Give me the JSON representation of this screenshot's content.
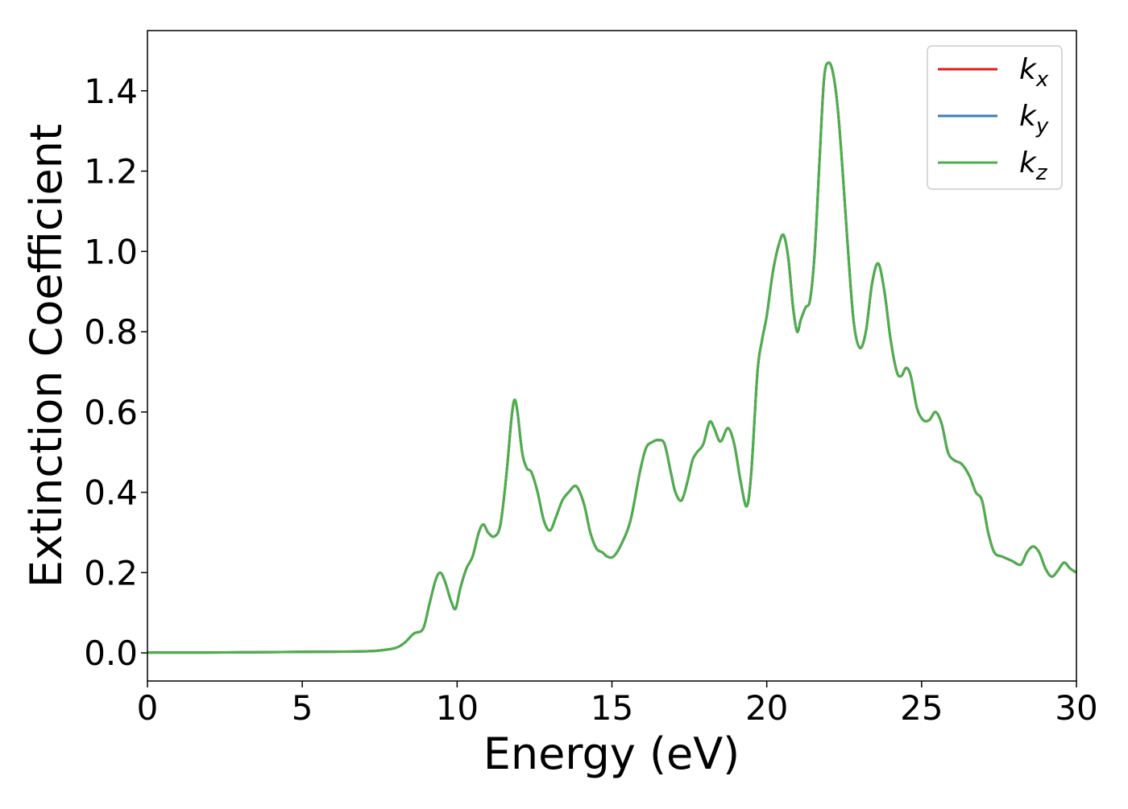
{
  "chart_data": {
    "type": "line",
    "xlabel": "Energy (eV)",
    "ylabel": "Extinction Coefficient",
    "xlim": [
      0,
      30
    ],
    "ylim": [
      -0.07,
      1.55
    ],
    "x_ticks": [
      "0",
      "5",
      "10",
      "15",
      "20",
      "25",
      "30"
    ],
    "y_ticks": [
      "0.0",
      "0.2",
      "0.4",
      "0.6",
      "0.8",
      "1.0",
      "1.2",
      "1.4"
    ],
    "x_tick_values": [
      0,
      5,
      10,
      15,
      20,
      25,
      30
    ],
    "y_tick_values": [
      0.0,
      0.2,
      0.4,
      0.6,
      0.8,
      1.0,
      1.2,
      1.4
    ],
    "grid": false,
    "legend_position": "top-right",
    "x": [
      0,
      2,
      4,
      6,
      7,
      7.5,
      8,
      8.3,
      8.6,
      8.9,
      9.1,
      9.3,
      9.45,
      9.6,
      9.8,
      9.95,
      10.1,
      10.3,
      10.5,
      10.7,
      10.85,
      11.0,
      11.2,
      11.4,
      11.6,
      11.75,
      11.85,
      11.95,
      12.1,
      12.25,
      12.4,
      12.6,
      12.8,
      13.0,
      13.2,
      13.4,
      13.6,
      13.85,
      14.1,
      14.3,
      14.5,
      14.7,
      14.85,
      15.05,
      15.3,
      15.6,
      15.9,
      16.1,
      16.3,
      16.5,
      16.7,
      16.9,
      17.05,
      17.25,
      17.45,
      17.6,
      17.75,
      17.95,
      18.15,
      18.3,
      18.45,
      18.55,
      18.75,
      18.95,
      19.15,
      19.35,
      19.5,
      19.7,
      19.85,
      20.0,
      20.2,
      20.4,
      20.55,
      20.7,
      20.85,
      20.98,
      21.1,
      21.25,
      21.4,
      21.55,
      21.7,
      21.85,
      22.0,
      22.15,
      22.3,
      22.45,
      22.6,
      22.8,
      23.0,
      23.2,
      23.4,
      23.6,
      23.8,
      24.0,
      24.2,
      24.35,
      24.5,
      24.65,
      24.85,
      25.05,
      25.25,
      25.45,
      25.65,
      25.85,
      26.05,
      26.3,
      26.55,
      26.75,
      26.95,
      27.15,
      27.35,
      27.6,
      27.9,
      28.2,
      28.4,
      28.6,
      28.8,
      29.0,
      29.2,
      29.4,
      29.6,
      29.8,
      30.0
    ],
    "series": [
      {
        "name": "k_x",
        "color": "#e41a1c",
        "values": [
          0.001,
          0.001,
          0.002,
          0.003,
          0.004,
          0.006,
          0.012,
          0.025,
          0.048,
          0.06,
          0.12,
          0.18,
          0.2,
          0.18,
          0.13,
          0.11,
          0.16,
          0.21,
          0.24,
          0.3,
          0.32,
          0.3,
          0.29,
          0.32,
          0.45,
          0.58,
          0.63,
          0.6,
          0.5,
          0.46,
          0.45,
          0.4,
          0.33,
          0.305,
          0.34,
          0.38,
          0.4,
          0.415,
          0.37,
          0.3,
          0.26,
          0.25,
          0.24,
          0.24,
          0.27,
          0.33,
          0.45,
          0.51,
          0.525,
          0.53,
          0.52,
          0.45,
          0.4,
          0.38,
          0.43,
          0.48,
          0.5,
          0.52,
          0.575,
          0.56,
          0.53,
          0.53,
          0.56,
          0.52,
          0.43,
          0.365,
          0.45,
          0.7,
          0.78,
          0.84,
          0.95,
          1.02,
          1.04,
          0.98,
          0.86,
          0.8,
          0.83,
          0.86,
          0.88,
          1.0,
          1.22,
          1.43,
          1.47,
          1.44,
          1.35,
          1.2,
          1.03,
          0.83,
          0.76,
          0.8,
          0.92,
          0.97,
          0.9,
          0.78,
          0.7,
          0.69,
          0.71,
          0.69,
          0.61,
          0.58,
          0.58,
          0.6,
          0.57,
          0.5,
          0.48,
          0.47,
          0.44,
          0.4,
          0.38,
          0.3,
          0.25,
          0.24,
          0.23,
          0.22,
          0.25,
          0.265,
          0.25,
          0.21,
          0.19,
          0.205,
          0.225,
          0.21,
          0.2
        ]
      },
      {
        "name": "k_y",
        "color": "#377eb8",
        "values": [
          0.001,
          0.001,
          0.002,
          0.003,
          0.004,
          0.006,
          0.012,
          0.025,
          0.048,
          0.06,
          0.12,
          0.18,
          0.2,
          0.18,
          0.13,
          0.11,
          0.16,
          0.21,
          0.24,
          0.3,
          0.32,
          0.3,
          0.29,
          0.32,
          0.45,
          0.58,
          0.63,
          0.6,
          0.5,
          0.46,
          0.45,
          0.4,
          0.33,
          0.305,
          0.34,
          0.38,
          0.4,
          0.415,
          0.37,
          0.3,
          0.26,
          0.25,
          0.24,
          0.24,
          0.27,
          0.33,
          0.45,
          0.51,
          0.525,
          0.53,
          0.52,
          0.45,
          0.4,
          0.38,
          0.43,
          0.48,
          0.5,
          0.52,
          0.575,
          0.56,
          0.53,
          0.53,
          0.56,
          0.52,
          0.43,
          0.365,
          0.45,
          0.7,
          0.78,
          0.84,
          0.95,
          1.02,
          1.04,
          0.98,
          0.86,
          0.8,
          0.83,
          0.86,
          0.88,
          1.0,
          1.22,
          1.43,
          1.47,
          1.44,
          1.35,
          1.2,
          1.03,
          0.83,
          0.76,
          0.8,
          0.92,
          0.97,
          0.9,
          0.78,
          0.7,
          0.69,
          0.71,
          0.69,
          0.61,
          0.58,
          0.58,
          0.6,
          0.57,
          0.5,
          0.48,
          0.47,
          0.44,
          0.4,
          0.38,
          0.3,
          0.25,
          0.24,
          0.23,
          0.22,
          0.25,
          0.265,
          0.25,
          0.21,
          0.19,
          0.205,
          0.225,
          0.21,
          0.2
        ]
      },
      {
        "name": "k_z",
        "color": "#4daf4a",
        "values": [
          0.001,
          0.001,
          0.002,
          0.003,
          0.004,
          0.006,
          0.012,
          0.025,
          0.048,
          0.06,
          0.12,
          0.18,
          0.2,
          0.18,
          0.13,
          0.11,
          0.16,
          0.21,
          0.24,
          0.3,
          0.32,
          0.3,
          0.29,
          0.32,
          0.45,
          0.58,
          0.63,
          0.6,
          0.5,
          0.46,
          0.45,
          0.4,
          0.33,
          0.305,
          0.34,
          0.38,
          0.4,
          0.415,
          0.37,
          0.3,
          0.26,
          0.25,
          0.24,
          0.24,
          0.27,
          0.33,
          0.45,
          0.51,
          0.525,
          0.53,
          0.52,
          0.45,
          0.4,
          0.38,
          0.43,
          0.48,
          0.5,
          0.52,
          0.575,
          0.56,
          0.53,
          0.53,
          0.56,
          0.52,
          0.43,
          0.365,
          0.45,
          0.7,
          0.78,
          0.84,
          0.95,
          1.02,
          1.04,
          0.98,
          0.86,
          0.8,
          0.83,
          0.86,
          0.88,
          1.0,
          1.22,
          1.43,
          1.47,
          1.44,
          1.35,
          1.2,
          1.03,
          0.83,
          0.76,
          0.8,
          0.92,
          0.97,
          0.9,
          0.78,
          0.7,
          0.69,
          0.71,
          0.69,
          0.61,
          0.58,
          0.58,
          0.6,
          0.57,
          0.5,
          0.48,
          0.47,
          0.44,
          0.4,
          0.38,
          0.3,
          0.25,
          0.24,
          0.23,
          0.22,
          0.25,
          0.265,
          0.25,
          0.21,
          0.19,
          0.205,
          0.225,
          0.21,
          0.2
        ]
      }
    ],
    "legend": [
      {
        "base": "k",
        "sub": "x",
        "color": "#e41a1c"
      },
      {
        "base": "k",
        "sub": "y",
        "color": "#377eb8"
      },
      {
        "base": "k",
        "sub": "z",
        "color": "#4daf4a"
      }
    ]
  }
}
